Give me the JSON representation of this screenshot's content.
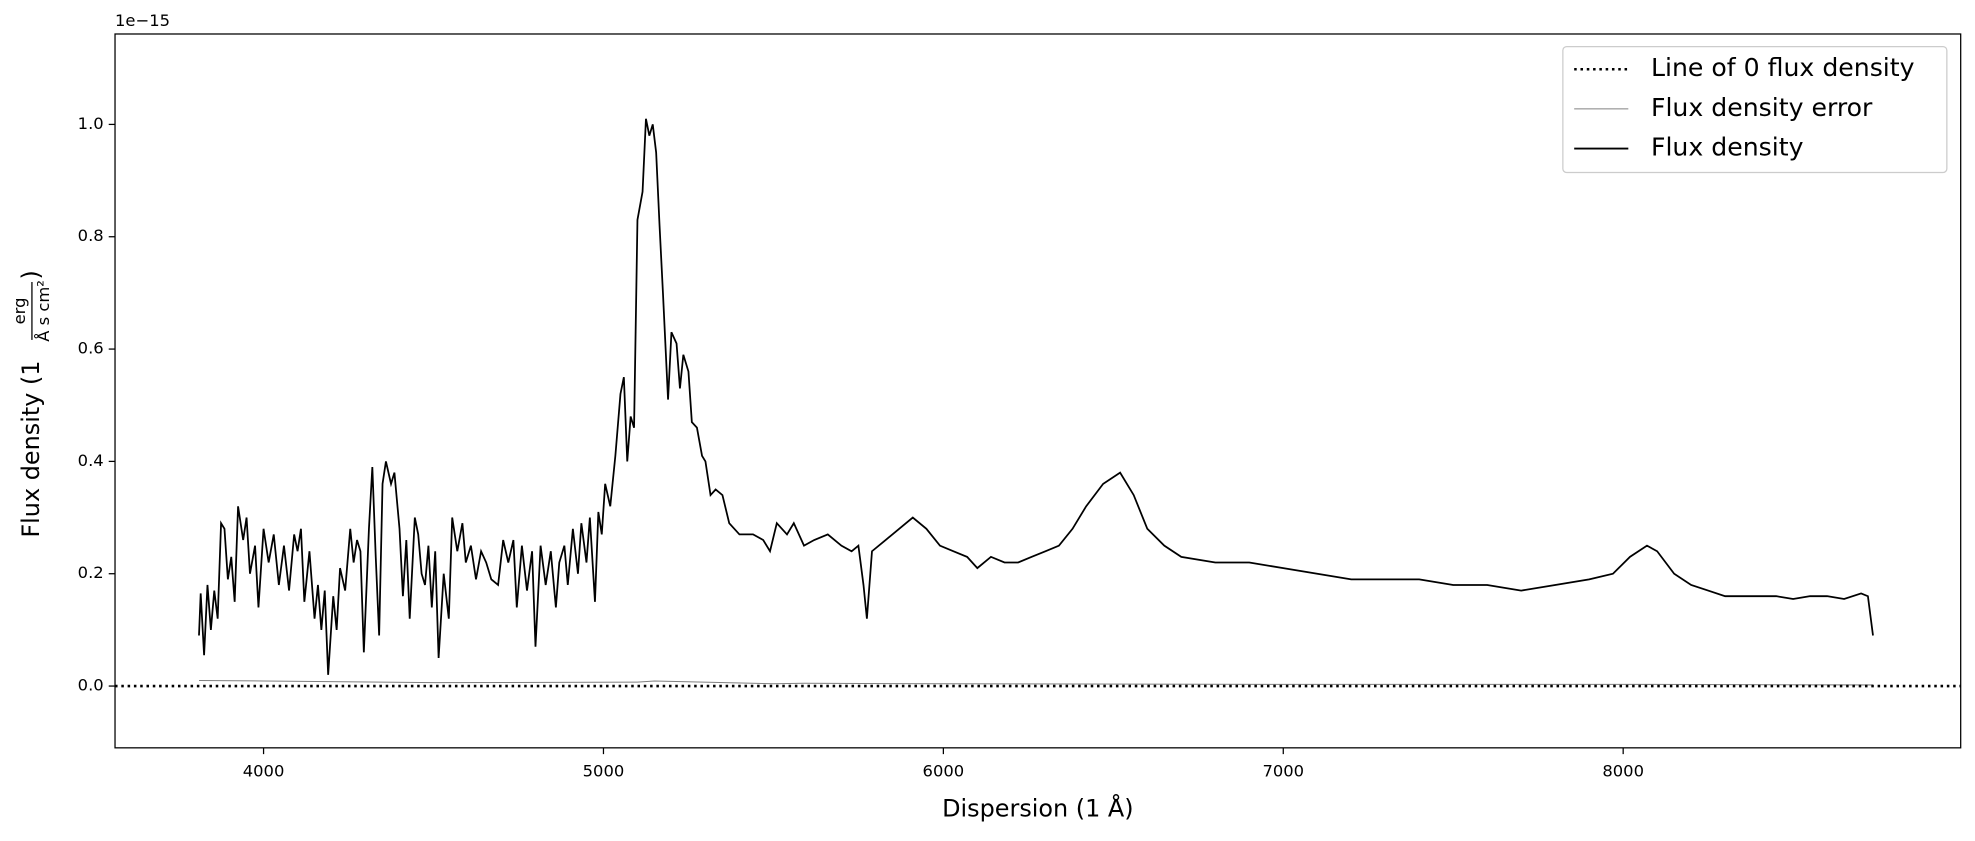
{
  "chart_data": {
    "type": "line",
    "x_label": "Dispersion (1 Å)",
    "y_label": {
      "text": "Flux density (1",
      "numerator": "erg",
      "denominator": "Å s cm²",
      "close": ")"
    },
    "offset_label": "1e−15",
    "xlim": [
      3563,
      8993
    ],
    "ylim": [
      -0.11,
      1.161
    ],
    "xticks": [
      4000,
      5000,
      6000,
      7000,
      8000
    ],
    "yticks": [
      {
        "value": 0,
        "label": "0.0"
      },
      0.2,
      0.4,
      0.6,
      0.8,
      {
        "value": 1,
        "label": "1.0"
      }
    ],
    "legend": "upper right",
    "series": [
      {
        "name": "Line of 0 flux density",
        "color": "#000000",
        "style": "dotted",
        "x": [
          3563,
          8993
        ],
        "values": [
          0,
          0
        ]
      },
      {
        "name": "Flux density error",
        "color": "#808080",
        "style": "solid",
        "x": [
          3810,
          4000,
          4500,
          5100,
          5150,
          5500,
          5590,
          6000,
          7000,
          8000,
          8735
        ],
        "values": [
          0.01,
          0.009,
          0.006,
          0.007,
          0.009,
          0.004,
          0.005,
          0.004,
          0.003,
          0.003,
          0.002
        ]
      },
      {
        "name": "Flux density",
        "color": "#000000",
        "style": "solid",
        "x": [
          3810,
          3815,
          3825,
          3835,
          3845,
          3855,
          3865,
          3875,
          3885,
          3895,
          3905,
          3915,
          3925,
          3940,
          3950,
          3960,
          3975,
          3985,
          4000,
          4015,
          4030,
          4045,
          4060,
          4075,
          4090,
          4100,
          4110,
          4120,
          4135,
          4150,
          4160,
          4170,
          4180,
          4190,
          4205,
          4215,
          4225,
          4240,
          4255,
          4265,
          4275,
          4285,
          4295,
          4310,
          4320,
          4330,
          4340,
          4350,
          4360,
          4375,
          4385,
          4400,
          4410,
          4420,
          4430,
          4445,
          4455,
          4465,
          4475,
          4485,
          4495,
          4505,
          4515,
          4530,
          4545,
          4555,
          4570,
          4585,
          4595,
          4610,
          4625,
          4640,
          4655,
          4670,
          4690,
          4705,
          4720,
          4735,
          4745,
          4760,
          4775,
          4790,
          4800,
          4815,
          4830,
          4845,
          4860,
          4870,
          4885,
          4895,
          4910,
          4925,
          4935,
          4950,
          4960,
          4975,
          4985,
          4995,
          5005,
          5020,
          5035,
          5050,
          5060,
          5070,
          5080,
          5090,
          5100,
          5115,
          5125,
          5135,
          5145,
          5155,
          5165,
          5175,
          5190,
          5200,
          5215,
          5225,
          5235,
          5250,
          5260,
          5275,
          5290,
          5300,
          5315,
          5330,
          5350,
          5370,
          5400,
          5440,
          5470,
          5490,
          5510,
          5540,
          5560,
          5590,
          5620,
          5660,
          5700,
          5730,
          5750,
          5765,
          5775,
          5790,
          5830,
          5870,
          5910,
          5950,
          5990,
          6030,
          6070,
          6100,
          6140,
          6180,
          6220,
          6260,
          6300,
          6340,
          6380,
          6420,
          6470,
          6520,
          6560,
          6600,
          6650,
          6700,
          6800,
          6900,
          7000,
          7100,
          7200,
          7300,
          7400,
          7500,
          7600,
          7700,
          7800,
          7900,
          7970,
          8020,
          8070,
          8100,
          8150,
          8200,
          8250,
          8300,
          8350,
          8400,
          8450,
          8500,
          8550,
          8600,
          8650,
          8700,
          8720,
          8735
        ],
        "values": [
          0.09,
          0.165,
          0.055,
          0.18,
          0.1,
          0.17,
          0.12,
          0.29,
          0.28,
          0.19,
          0.23,
          0.15,
          0.32,
          0.26,
          0.3,
          0.2,
          0.25,
          0.14,
          0.28,
          0.22,
          0.27,
          0.18,
          0.25,
          0.17,
          0.27,
          0.24,
          0.28,
          0.15,
          0.24,
          0.12,
          0.18,
          0.1,
          0.17,
          0.02,
          0.16,
          0.1,
          0.21,
          0.17,
          0.28,
          0.22,
          0.26,
          0.24,
          0.06,
          0.28,
          0.39,
          0.23,
          0.09,
          0.36,
          0.4,
          0.36,
          0.38,
          0.28,
          0.16,
          0.26,
          0.12,
          0.3,
          0.27,
          0.2,
          0.18,
          0.25,
          0.14,
          0.24,
          0.05,
          0.2,
          0.12,
          0.3,
          0.24,
          0.29,
          0.22,
          0.25,
          0.19,
          0.24,
          0.22,
          0.19,
          0.18,
          0.26,
          0.22,
          0.26,
          0.14,
          0.25,
          0.17,
          0.24,
          0.07,
          0.25,
          0.18,
          0.24,
          0.14,
          0.22,
          0.25,
          0.18,
          0.28,
          0.2,
          0.29,
          0.22,
          0.3,
          0.15,
          0.31,
          0.27,
          0.36,
          0.32,
          0.41,
          0.52,
          0.55,
          0.4,
          0.48,
          0.46,
          0.83,
          0.88,
          1.01,
          0.98,
          1.0,
          0.95,
          0.82,
          0.7,
          0.51,
          0.63,
          0.61,
          0.53,
          0.59,
          0.56,
          0.47,
          0.46,
          0.41,
          0.4,
          0.34,
          0.35,
          0.34,
          0.29,
          0.27,
          0.27,
          0.26,
          0.24,
          0.29,
          0.27,
          0.29,
          0.25,
          0.26,
          0.27,
          0.25,
          0.24,
          0.25,
          0.18,
          0.12,
          0.24,
          0.26,
          0.28,
          0.3,
          0.28,
          0.25,
          0.24,
          0.23,
          0.21,
          0.23,
          0.22,
          0.22,
          0.23,
          0.24,
          0.25,
          0.28,
          0.32,
          0.36,
          0.38,
          0.34,
          0.28,
          0.25,
          0.23,
          0.22,
          0.22,
          0.21,
          0.2,
          0.19,
          0.19,
          0.19,
          0.18,
          0.18,
          0.17,
          0.18,
          0.19,
          0.2,
          0.23,
          0.25,
          0.24,
          0.2,
          0.18,
          0.17,
          0.16,
          0.16,
          0.16,
          0.16,
          0.155,
          0.16,
          0.16,
          0.155,
          0.165,
          0.16,
          0.09
        ]
      }
    ]
  }
}
